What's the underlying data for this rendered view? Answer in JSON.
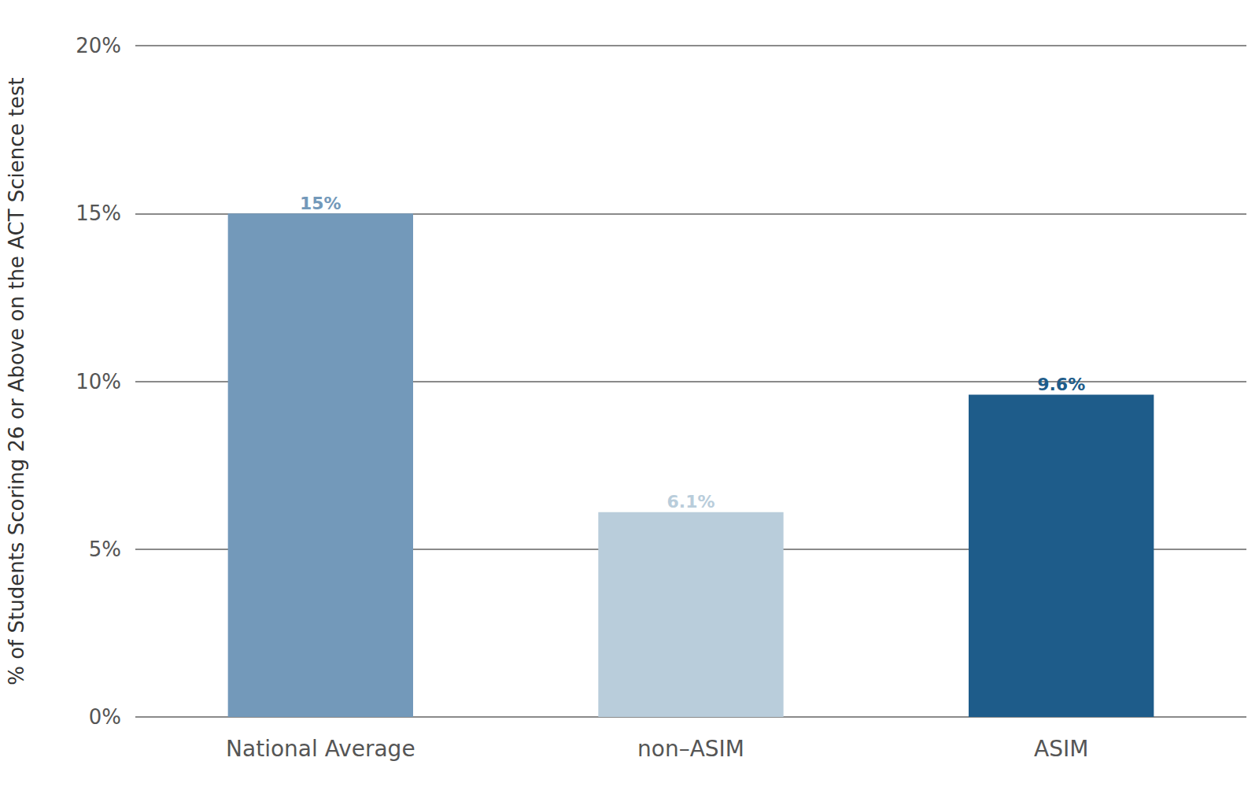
{
  "chart_data": {
    "type": "bar",
    "y_label": "% of Students Scoring 26 or Above on the ACT Science test",
    "categories": [
      "National Average",
      "non–ASIM",
      "ASIM"
    ],
    "values": [
      15,
      6.1,
      9.6
    ],
    "value_labels": [
      "15%",
      "6.1%",
      "9.6%"
    ],
    "colors": [
      "#7399ba",
      "#b9cddb",
      "#1e5c8a"
    ],
    "ylim": [
      0,
      20
    ],
    "yticks": [
      {
        "value": 0,
        "label": "0%"
      },
      {
        "value": 5,
        "label": "5%"
      },
      {
        "value": 10,
        "label": "10%"
      },
      {
        "value": 15,
        "label": "15%"
      },
      {
        "value": 20,
        "label": "20%"
      }
    ],
    "grid": true,
    "data_labels": true
  }
}
